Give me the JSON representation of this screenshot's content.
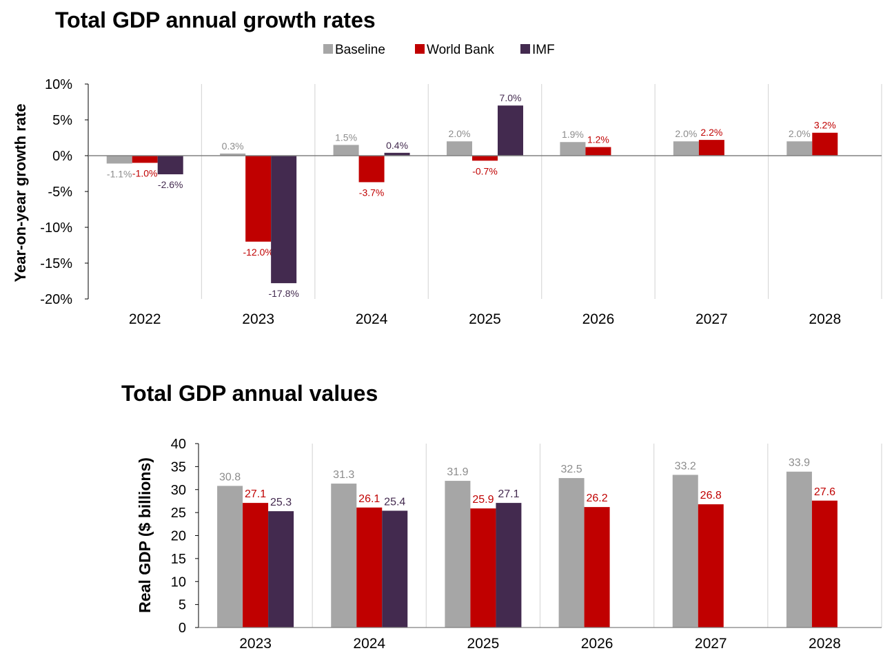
{
  "colors": {
    "Baseline": "#a6a6a6",
    "World Bank": "#c00000",
    "IMF": "#432a4f"
  },
  "label_colors": {
    "Baseline": "#8c8c8c",
    "World Bank": "#c00000",
    "IMF": "#432a4f"
  },
  "legend": [
    "Baseline",
    "World Bank",
    "IMF"
  ],
  "chart_data": [
    {
      "type": "bar",
      "title": "Total GDP annual growth rates",
      "ylabel": "Year-on-year growth rate",
      "xlabel": "",
      "ylim": [
        -20,
        10
      ],
      "yticks": [
        "10%",
        "5%",
        "0%",
        "-5%",
        "-10%",
        "-15%",
        "-20%"
      ],
      "ytick_values": [
        10,
        5,
        0,
        -5,
        -10,
        -15,
        -20
      ],
      "categories": [
        "2022",
        "2023",
        "2024",
        "2025",
        "2026",
        "2027",
        "2028"
      ],
      "series": [
        {
          "name": "Baseline",
          "values": [
            -1.1,
            0.3,
            1.5,
            2.0,
            1.9,
            2.0,
            2.0
          ],
          "labels": [
            "-1.1%",
            "0.3%",
            "1.5%",
            "2.0%",
            "1.9%",
            "2.0%",
            "2.0%"
          ]
        },
        {
          "name": "World Bank",
          "values": [
            -1.0,
            -12.0,
            -3.7,
            -0.7,
            1.2,
            2.2,
            3.2
          ],
          "labels": [
            "-1.0%",
            "-12.0%",
            "-3.7%",
            "-0.7%",
            "1.2%",
            "2.2%",
            "3.2%"
          ]
        },
        {
          "name": "IMF",
          "values": [
            -2.6,
            -17.8,
            0.4,
            7.0,
            null,
            null,
            null
          ],
          "labels": [
            "-2.6%",
            "-17.8%",
            "0.4%",
            "7.0%",
            "",
            "",
            ""
          ]
        }
      ],
      "grid": "vertical separators",
      "legend_position": "top-center"
    },
    {
      "type": "bar",
      "title": "Total GDP annual values",
      "ylabel": "Real GDP ($ billions)",
      "xlabel": "",
      "ylim": [
        0,
        40
      ],
      "yticks": [
        "40",
        "35",
        "30",
        "25",
        "20",
        "15",
        "10",
        "5",
        "0"
      ],
      "ytick_values": [
        40,
        35,
        30,
        25,
        20,
        15,
        10,
        5,
        0
      ],
      "categories": [
        "2023",
        "2024",
        "2025",
        "2026",
        "2027",
        "2028"
      ],
      "series": [
        {
          "name": "Baseline",
          "values": [
            30.8,
            31.3,
            31.9,
            32.5,
            33.2,
            33.9
          ],
          "labels": [
            "30.8",
            "31.3",
            "31.9",
            "32.5",
            "33.2",
            "33.9"
          ]
        },
        {
          "name": "World Bank",
          "values": [
            27.1,
            26.1,
            25.9,
            26.2,
            26.8,
            27.6
          ],
          "labels": [
            "27.1",
            "26.1",
            "25.9",
            "26.2",
            "26.8",
            "27.6"
          ]
        },
        {
          "name": "IMF",
          "values": [
            25.3,
            25.4,
            27.1,
            null,
            null,
            null
          ],
          "labels": [
            "25.3",
            "25.4",
            "27.1",
            "",
            "",
            ""
          ]
        }
      ],
      "grid": "vertical separators",
      "legend_position": "none"
    }
  ]
}
